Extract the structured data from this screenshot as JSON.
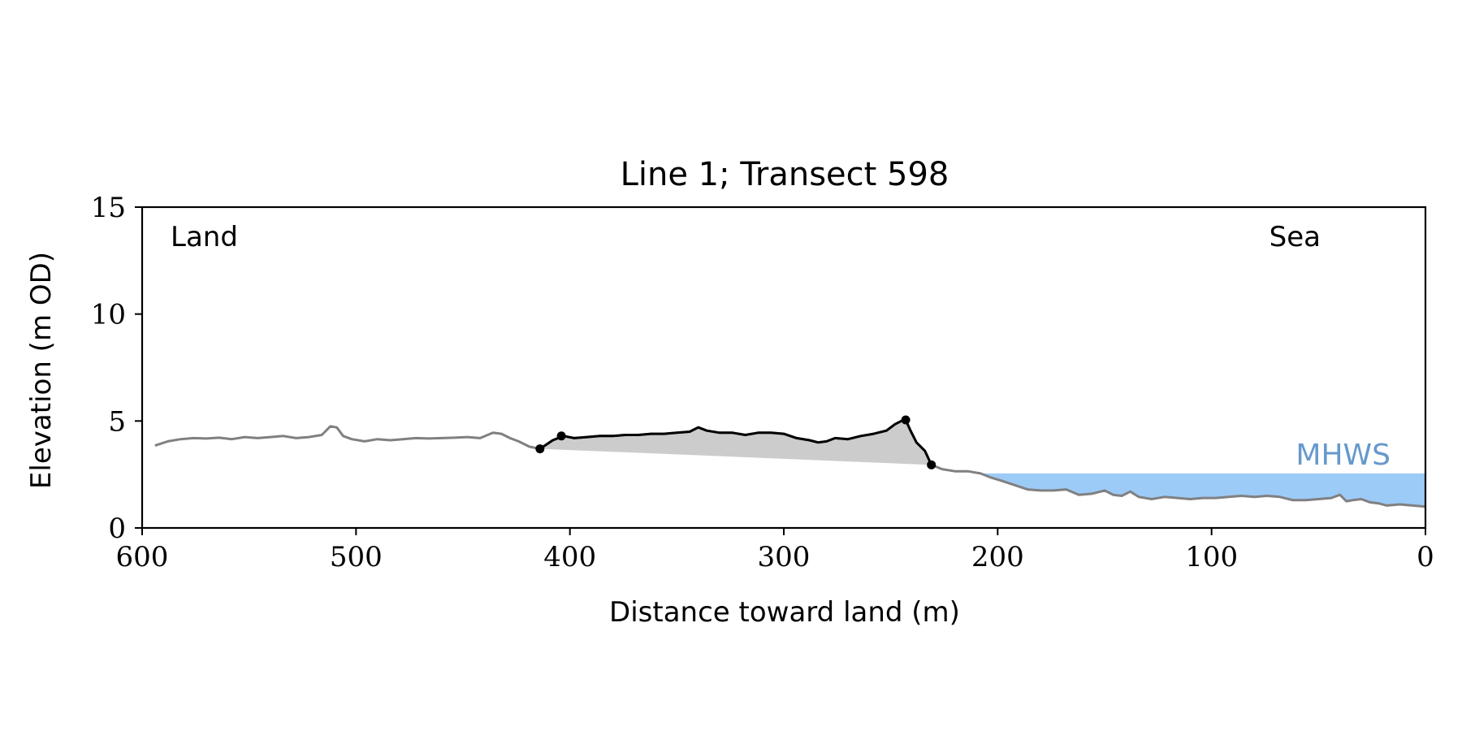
{
  "chart_data": {
    "type": "line",
    "title": "Line 1; Transect 598",
    "xlabel": "Distance toward land (m)",
    "ylabel": "Elevation (m OD)",
    "xlim": [
      600,
      0
    ],
    "ylim": [
      0,
      15
    ],
    "x_ticks": [
      600,
      500,
      400,
      300,
      200,
      100,
      0
    ],
    "y_ticks": [
      0,
      5,
      10,
      15
    ],
    "grid": false,
    "annotations": {
      "land": "Land",
      "sea": "Sea",
      "mhws": "MHWS"
    },
    "mhws_level": 2.55,
    "series": [
      {
        "role": "full-profile",
        "color": "#808080",
        "x": [
          594,
          588,
          582,
          576,
          570,
          564,
          558,
          552,
          546,
          540,
          534,
          528,
          522,
          516,
          512,
          509,
          506,
          502,
          496,
          490,
          484,
          478,
          472,
          466,
          460,
          454,
          448,
          442,
          436,
          432,
          428,
          424,
          419,
          414,
          408,
          403,
          398,
          392,
          386,
          380,
          374,
          368,
          362,
          356,
          350,
          344,
          340,
          336,
          330,
          324,
          318,
          312,
          306,
          300,
          294,
          288,
          284,
          280,
          276,
          270,
          264,
          258,
          252,
          248,
          245,
          243,
          241,
          238,
          234,
          231,
          226,
          220,
          214,
          208,
          203,
          198,
          192,
          186,
          180,
          174,
          168,
          162,
          156,
          150,
          146,
          142,
          138,
          134,
          128,
          122,
          116,
          110,
          104,
          98,
          92,
          86,
          80,
          74,
          68,
          62,
          56,
          50,
          44,
          40,
          37,
          34,
          30,
          26,
          22,
          18,
          12,
          6,
          0
        ],
        "y": [
          3.85,
          4.05,
          4.15,
          4.2,
          4.18,
          4.22,
          4.15,
          4.25,
          4.2,
          4.25,
          4.3,
          4.2,
          4.25,
          4.35,
          4.75,
          4.7,
          4.3,
          4.15,
          4.05,
          4.15,
          4.1,
          4.15,
          4.2,
          4.18,
          4.2,
          4.22,
          4.25,
          4.2,
          4.45,
          4.4,
          4.2,
          4.05,
          3.8,
          3.7,
          4.1,
          4.3,
          4.2,
          4.25,
          4.3,
          4.3,
          4.35,
          4.35,
          4.4,
          4.4,
          4.45,
          4.5,
          4.7,
          4.55,
          4.45,
          4.45,
          4.35,
          4.45,
          4.45,
          4.4,
          4.2,
          4.1,
          4.0,
          4.05,
          4.2,
          4.15,
          4.3,
          4.4,
          4.55,
          4.85,
          5.0,
          5.05,
          4.6,
          4.0,
          3.6,
          2.95,
          2.75,
          2.65,
          2.65,
          2.55,
          2.35,
          2.2,
          2.0,
          1.8,
          1.75,
          1.75,
          1.8,
          1.55,
          1.6,
          1.75,
          1.55,
          1.5,
          1.7,
          1.45,
          1.35,
          1.45,
          1.4,
          1.35,
          1.4,
          1.4,
          1.45,
          1.5,
          1.45,
          1.5,
          1.45,
          1.3,
          1.3,
          1.35,
          1.4,
          1.55,
          1.25,
          1.3,
          1.35,
          1.2,
          1.15,
          1.05,
          1.1,
          1.05,
          1.0
        ]
      },
      {
        "role": "measured-feature",
        "color": "#000000",
        "x": [
          414,
          408,
          403,
          398,
          392,
          386,
          380,
          374,
          368,
          362,
          356,
          350,
          344,
          340,
          336,
          330,
          324,
          318,
          312,
          306,
          300,
          294,
          288,
          284,
          280,
          276,
          270,
          264,
          258,
          252,
          248,
          245,
          243,
          241,
          238,
          234,
          231
        ],
        "y": [
          3.7,
          4.1,
          4.3,
          4.2,
          4.25,
          4.3,
          4.3,
          4.35,
          4.35,
          4.4,
          4.4,
          4.45,
          4.5,
          4.7,
          4.55,
          4.45,
          4.45,
          4.35,
          4.45,
          4.45,
          4.4,
          4.2,
          4.1,
          4.0,
          4.05,
          4.2,
          4.15,
          4.3,
          4.4,
          4.55,
          4.85,
          5.0,
          5.05,
          4.6,
          4.0,
          3.6,
          2.95
        ]
      }
    ],
    "points": [
      {
        "x": 414,
        "y": 3.7
      },
      {
        "x": 404,
        "y": 4.3
      },
      {
        "x": 243,
        "y": 5.05
      },
      {
        "x": 231,
        "y": 2.95
      }
    ],
    "colors": {
      "sea_fill": "#9dcbf8",
      "mhws_text": "#6699cc",
      "feature_fill": "#cccccc",
      "profile": "#808080",
      "feature": "#000000"
    }
  }
}
